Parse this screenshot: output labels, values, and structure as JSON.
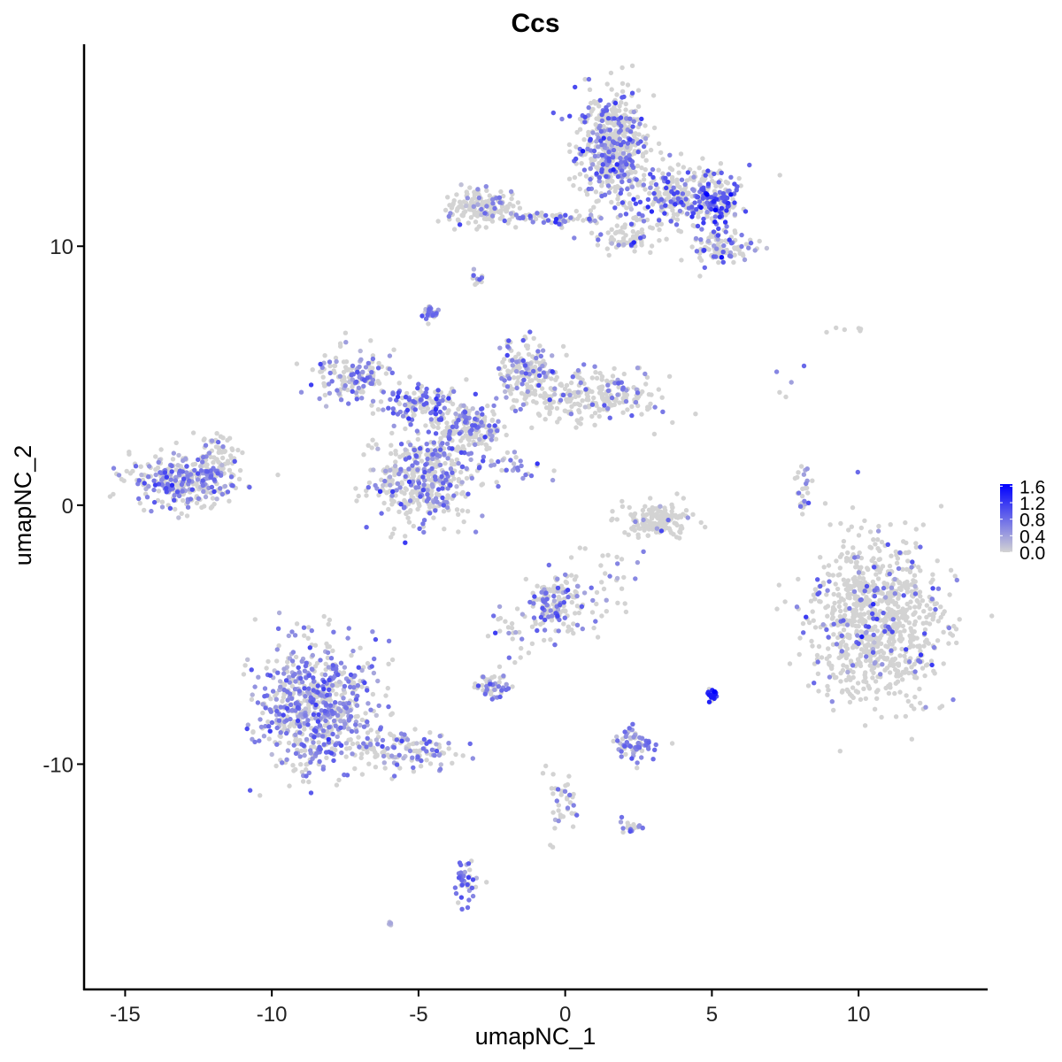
{
  "chart_data": {
    "type": "scatter",
    "title": "Ccs",
    "xlabel": "umapNC_1",
    "ylabel": "umapNC_2",
    "xlim": [
      -16.4,
      14.4
    ],
    "ylim": [
      -18.7,
      17.8
    ],
    "xticks": [
      -15,
      -10,
      -5,
      0,
      5,
      10
    ],
    "yticks": [
      -10,
      0,
      10
    ],
    "xtick_labels": [
      "-15",
      "-10",
      "-5",
      "0",
      "5",
      "10"
    ],
    "ytick_labels": [
      "-10",
      "0",
      "10"
    ],
    "grid": false,
    "legend": {
      "position": "right",
      "type": "colorbar",
      "range": [
        0,
        1.65
      ],
      "ticks": [
        "1.6",
        "1.2",
        "0.8",
        "0.4",
        "0.0"
      ],
      "tick_values": [
        1.6,
        1.2,
        0.8,
        0.4,
        0.0
      ],
      "low_color": "#d3d3d3",
      "high_color": "#0000ff"
    },
    "note": "Points are summarized as clusters (center, spread, count, fraction expressing, mean expression) in UMAP data units",
    "clusters": [
      {
        "cx": 1.6,
        "cy": 13.9,
        "sx": 0.6,
        "sy": 1.0,
        "n": 520,
        "frac": 0.3,
        "mean": 0.7
      },
      {
        "cx": 3.8,
        "cy": 12.0,
        "sx": 1.0,
        "sy": 0.6,
        "n": 300,
        "frac": 0.35,
        "mean": 0.8
      },
      {
        "cx": 5.2,
        "cy": 11.6,
        "sx": 0.35,
        "sy": 0.35,
        "n": 90,
        "frac": 0.7,
        "mean": 1.0
      },
      {
        "cx": 5.3,
        "cy": 9.9,
        "sx": 0.6,
        "sy": 0.35,
        "n": 110,
        "frac": 0.3,
        "mean": 0.7
      },
      {
        "cx": -2.8,
        "cy": 11.5,
        "sx": 0.6,
        "sy": 0.35,
        "n": 170,
        "frac": 0.15,
        "mean": 0.6
      },
      {
        "cx": -0.5,
        "cy": 11.1,
        "sx": 1.3,
        "sy": 0.15,
        "n": 80,
        "frac": 0.3,
        "mean": 0.7
      },
      {
        "cx": 2.2,
        "cy": 10.3,
        "sx": 0.7,
        "sy": 0.3,
        "n": 70,
        "frac": 0.25,
        "mean": 0.7
      },
      {
        "cx": -13.0,
        "cy": 1.0,
        "sx": 0.9,
        "sy": 0.5,
        "n": 330,
        "frac": 0.45,
        "mean": 0.6
      },
      {
        "cx": -11.8,
        "cy": 1.9,
        "sx": 0.4,
        "sy": 0.4,
        "n": 50,
        "frac": 0.15,
        "mean": 0.5
      },
      {
        "cx": -3.3,
        "cy": 3.0,
        "sx": 0.6,
        "sy": 0.5,
        "n": 200,
        "frac": 0.4,
        "mean": 0.7
      },
      {
        "cx": -7.2,
        "cy": 5.0,
        "sx": 0.7,
        "sy": 0.5,
        "n": 150,
        "frac": 0.4,
        "mean": 0.6
      },
      {
        "cx": -5.0,
        "cy": 4.0,
        "sx": 0.6,
        "sy": 0.3,
        "n": 120,
        "frac": 0.45,
        "mean": 0.7
      },
      {
        "cx": -4.9,
        "cy": 1.0,
        "sx": 0.8,
        "sy": 0.9,
        "n": 420,
        "frac": 0.35,
        "mean": 0.6
      },
      {
        "cx": -1.3,
        "cy": 5.3,
        "sx": 0.5,
        "sy": 0.6,
        "n": 150,
        "frac": 0.3,
        "mean": 0.6
      },
      {
        "cx": 0.8,
        "cy": 4.2,
        "sx": 1.2,
        "sy": 0.5,
        "n": 260,
        "frac": 0.15,
        "mean": 0.6
      },
      {
        "cx": -4.6,
        "cy": 7.4,
        "sx": 0.15,
        "sy": 0.15,
        "n": 25,
        "frac": 0.6,
        "mean": 0.6
      },
      {
        "cx": -1.8,
        "cy": 1.5,
        "sx": 0.5,
        "sy": 0.4,
        "n": 30,
        "frac": 0.7,
        "mean": 0.6
      },
      {
        "cx": 3.2,
        "cy": -0.6,
        "sx": 0.6,
        "sy": 0.35,
        "n": 170,
        "frac": 0.05,
        "mean": 0.5
      },
      {
        "cx": 10.6,
        "cy": -4.4,
        "sx": 1.1,
        "sy": 1.5,
        "n": 900,
        "frac": 0.12,
        "mean": 0.7
      },
      {
        "cx": -8.5,
        "cy": -7.8,
        "sx": 1.0,
        "sy": 1.2,
        "n": 700,
        "frac": 0.5,
        "mean": 0.6
      },
      {
        "cx": -5.5,
        "cy": -9.5,
        "sx": 0.9,
        "sy": 0.4,
        "n": 130,
        "frac": 0.45,
        "mean": 0.6
      },
      {
        "cx": -0.3,
        "cy": -3.8,
        "sx": 0.5,
        "sy": 0.6,
        "n": 170,
        "frac": 0.35,
        "mean": 0.7
      },
      {
        "cx": -2.5,
        "cy": -7.0,
        "sx": 0.3,
        "sy": 0.2,
        "n": 50,
        "frac": 0.5,
        "mean": 0.6
      },
      {
        "cx": 2.4,
        "cy": -9.3,
        "sx": 0.35,
        "sy": 0.3,
        "n": 70,
        "frac": 0.6,
        "mean": 0.6
      },
      {
        "cx": 5.0,
        "cy": -7.3,
        "sx": 0.1,
        "sy": 0.15,
        "n": 20,
        "frac": 0.9,
        "mean": 1.3
      },
      {
        "cx": -3.4,
        "cy": -14.6,
        "sx": 0.2,
        "sy": 0.5,
        "n": 40,
        "frac": 0.6,
        "mean": 0.7
      },
      {
        "cx": -0.2,
        "cy": -11.4,
        "sx": 0.25,
        "sy": 0.7,
        "n": 40,
        "frac": 0.3,
        "mean": 0.6
      },
      {
        "cx": 2.2,
        "cy": -12.4,
        "sx": 0.2,
        "sy": 0.15,
        "n": 20,
        "frac": 0.5,
        "mean": 0.7
      },
      {
        "cx": 8.0,
        "cy": 0.5,
        "sx": 0.2,
        "sy": 0.5,
        "n": 25,
        "frac": 0.5,
        "mean": 0.6
      },
      {
        "cx": -3.0,
        "cy": 8.7,
        "sx": 0.1,
        "sy": 0.2,
        "n": 12,
        "frac": 0.5,
        "mean": 0.6
      },
      {
        "cx": -6.0,
        "cy": -16.1,
        "sx": 0.05,
        "sy": 0.05,
        "n": 4,
        "frac": 1.0,
        "mean": 0.5
      },
      {
        "cx": 9.5,
        "cy": 6.8,
        "sx": 0.4,
        "sy": 0.1,
        "n": 6,
        "frac": 0.0,
        "mean": 0.0
      },
      {
        "cx": 7.6,
        "cy": 5.0,
        "sx": 0.4,
        "sy": 1.0,
        "n": 5,
        "frac": 0.4,
        "mean": 0.5
      },
      {
        "cx": 1.5,
        "cy": -2.9,
        "sx": 0.5,
        "sy": 1.0,
        "n": 30,
        "frac": 0.3,
        "mean": 0.6
      },
      {
        "cx": -1.8,
        "cy": -5.0,
        "sx": 0.4,
        "sy": 0.6,
        "n": 25,
        "frac": 0.4,
        "mean": 0.6
      }
    ]
  }
}
